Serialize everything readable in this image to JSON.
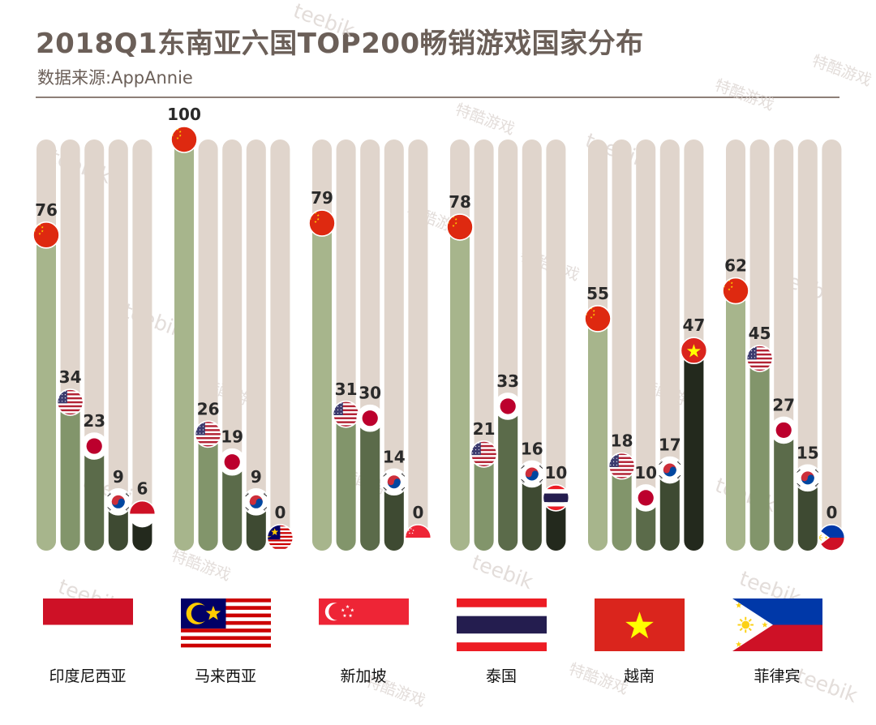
{
  "page": {
    "title": "2018Q1东南亚六国TOP200畅销游戏国家分布",
    "subtitle": "数据来源:AppAnnie",
    "watermarks": [
      "teebik",
      "特酷游戏"
    ]
  },
  "colors": {
    "track": "#e0d5cc",
    "bars": [
      "#a7b58c",
      "#82956b",
      "#5b6b4a",
      "#3e4a32",
      "#23291d"
    ],
    "text": "#2a2a2a",
    "label": "#111111",
    "watermark": "#d9d2cd"
  },
  "chart_data": {
    "type": "bar",
    "title": "2018Q1东南亚六国TOP200畅销游戏国家分布",
    "source": "数据来源:AppAnnie",
    "ylim": [
      0,
      100
    ],
    "series_origin_flags": [
      [
        "china",
        "usa",
        "japan",
        "korea",
        "indonesia"
      ],
      [
        "china",
        "usa",
        "japan",
        "korea",
        "malaysia"
      ],
      [
        "china",
        "usa",
        "japan",
        "korea",
        "singapore"
      ],
      [
        "china",
        "usa",
        "japan",
        "korea",
        "thailand"
      ],
      [
        "china",
        "usa",
        "japan",
        "korea",
        "vietnam"
      ],
      [
        "china",
        "usa",
        "japan",
        "korea",
        "philippines"
      ]
    ],
    "groups": [
      {
        "market": "印度尼西亚",
        "flag": "indonesia",
        "values": [
          76,
          34,
          23,
          9,
          6
        ]
      },
      {
        "market": "马来西亚",
        "flag": "malaysia",
        "values": [
          100,
          26,
          19,
          9,
          0
        ]
      },
      {
        "market": "新加坡",
        "flag": "singapore",
        "values": [
          79,
          31,
          30,
          14,
          0
        ]
      },
      {
        "market": "泰国",
        "flag": "thailand",
        "values": [
          78,
          21,
          33,
          16,
          10
        ]
      },
      {
        "market": "越南",
        "flag": "vietnam",
        "values": [
          55,
          18,
          10,
          17,
          47
        ]
      },
      {
        "market": "菲律宾",
        "flag": "philippines",
        "values": [
          62,
          45,
          27,
          15,
          0
        ]
      }
    ]
  }
}
